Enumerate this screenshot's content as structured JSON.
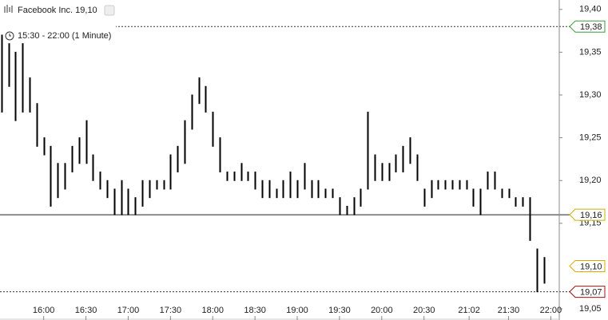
{
  "chart_data": {
    "type": "hilo",
    "title": "Facebook Inc. 19,10",
    "subtitle": "15:30 - 22:00 (1 Minute)",
    "color": "#000000",
    "x": [
      "15:30",
      "15:35",
      "15:40",
      "15:45",
      "15:50",
      "15:55",
      "16:00",
      "16:05",
      "16:10",
      "16:15",
      "16:20",
      "16:25",
      "16:30",
      "16:35",
      "16:40",
      "16:45",
      "16:50",
      "16:55",
      "17:00",
      "17:05",
      "17:10",
      "17:15",
      "17:20",
      "17:25",
      "17:30",
      "17:35",
      "17:40",
      "17:45",
      "17:50",
      "17:55",
      "18:00",
      "18:05",
      "18:10",
      "18:15",
      "18:20",
      "18:25",
      "18:30",
      "18:35",
      "18:40",
      "18:45",
      "18:50",
      "18:55",
      "19:00",
      "19:05",
      "19:10",
      "19:15",
      "19:20",
      "19:25",
      "19:30",
      "19:35",
      "19:40",
      "19:45",
      "19:50",
      "19:55",
      "20:00",
      "20:05",
      "20:10",
      "20:15",
      "20:20",
      "20:25",
      "20:30",
      "20:35",
      "20:40",
      "20:45",
      "20:50",
      "20:55",
      "21:00",
      "21:05",
      "21:10",
      "21:15",
      "21:20",
      "21:25",
      "21:30",
      "21:35",
      "21:40",
      "21:45",
      "21:50",
      "21:55"
    ],
    "high": [
      19.37,
      19.36,
      19.35,
      19.36,
      19.32,
      19.29,
      19.25,
      19.24,
      19.22,
      19.22,
      19.24,
      19.25,
      19.27,
      19.23,
      19.21,
      19.2,
      19.19,
      19.2,
      19.19,
      19.18,
      19.2,
      19.2,
      19.2,
      19.2,
      19.23,
      19.24,
      19.27,
      19.3,
      19.32,
      19.31,
      19.28,
      19.25,
      19.21,
      19.21,
      19.22,
      19.21,
      19.21,
      19.2,
      19.2,
      19.19,
      19.2,
      19.21,
      19.2,
      19.22,
      19.2,
      19.2,
      19.19,
      19.19,
      19.18,
      19.17,
      19.18,
      19.19,
      19.28,
      19.23,
      19.22,
      19.22,
      19.23,
      19.24,
      19.25,
      19.23,
      19.19,
      19.2,
      19.2,
      19.2,
      19.2,
      19.2,
      19.2,
      19.19,
      19.19,
      19.21,
      19.21,
      19.19,
      19.19,
      19.18,
      19.18,
      19.18,
      19.12,
      19.11
    ],
    "low": [
      19.28,
      19.31,
      19.27,
      19.28,
      19.28,
      19.24,
      19.23,
      19.17,
      19.18,
      19.19,
      19.21,
      19.22,
      19.22,
      19.2,
      19.19,
      19.18,
      19.16,
      19.16,
      19.16,
      19.16,
      19.17,
      19.18,
      19.19,
      19.19,
      19.19,
      19.21,
      19.22,
      19.26,
      19.29,
      19.28,
      19.24,
      19.21,
      19.2,
      19.2,
      19.2,
      19.2,
      19.19,
      19.18,
      19.18,
      19.18,
      19.18,
      19.18,
      19.18,
      19.19,
      19.18,
      19.18,
      19.18,
      19.18,
      19.16,
      19.16,
      19.16,
      19.17,
      19.19,
      19.2,
      19.2,
      19.2,
      19.21,
      19.21,
      19.22,
      19.2,
      19.17,
      19.18,
      19.19,
      19.19,
      19.19,
      19.19,
      19.19,
      19.17,
      19.16,
      19.19,
      19.19,
      19.18,
      19.18,
      19.17,
      19.17,
      19.13,
      19.07,
      19.08
    ],
    "xlim": [
      "15:29",
      "22:06"
    ],
    "xticks": [
      "16:00",
      "16:30",
      "17:00",
      "17:30",
      "18:00",
      "18:30",
      "19:00",
      "19:30",
      "20:00",
      "20:30",
      "21:02",
      "21:30",
      "22:00"
    ],
    "ylim": [
      19.037,
      19.411
    ],
    "yticks": [
      {
        "value": 19.05,
        "label": "19,05"
      },
      {
        "value": 19.15,
        "label": "19,15"
      },
      {
        "value": 19.2,
        "label": "19,20"
      },
      {
        "value": 19.25,
        "label": "19,25"
      },
      {
        "value": 19.3,
        "label": "19,30"
      },
      {
        "value": 19.35,
        "label": "19,35"
      },
      {
        "value": 19.4,
        "label": "19,40"
      }
    ],
    "price_markers": [
      {
        "value": 19.38,
        "label": "19,38",
        "color": "#3a9a3a",
        "line": "dotted"
      },
      {
        "value": 19.16,
        "label": "19,16",
        "color": "#c9b000",
        "line": "solid"
      },
      {
        "value": 19.1,
        "label": "19,10",
        "color": "#e0a800",
        "line": "none"
      },
      {
        "value": 19.07,
        "label": "19,07",
        "color": "#a01010",
        "line": "dotted"
      }
    ]
  }
}
